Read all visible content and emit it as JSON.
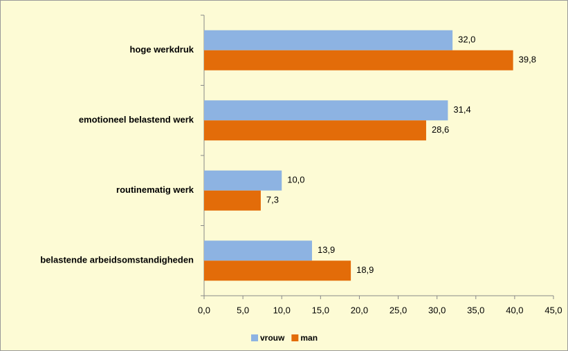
{
  "chart_data": {
    "type": "barh",
    "categories": [
      "hoge werkdruk",
      "emotioneel belastend werk",
      "routinematig werk",
      "belastende arbeidsomstandigheden"
    ],
    "series": [
      {
        "name": "vrouw",
        "color": "#8db3e2",
        "values": [
          32.0,
          31.4,
          10.0,
          13.9
        ],
        "value_labels": [
          "32,0",
          "31,4",
          "10,0",
          "13,9"
        ]
      },
      {
        "name": "man",
        "color": "#e36c09",
        "values": [
          39.8,
          28.6,
          7.3,
          18.9
        ],
        "value_labels": [
          "39,8",
          "28,6",
          "7,3",
          "18,9"
        ]
      }
    ],
    "xlim": [
      0,
      45
    ],
    "xticks": [
      {
        "value": 0,
        "label": "0,0"
      },
      {
        "value": 5,
        "label": "5,0"
      },
      {
        "value": 10,
        "label": "10,0"
      },
      {
        "value": 15,
        "label": "15,0"
      },
      {
        "value": 20,
        "label": "20,0"
      },
      {
        "value": 25,
        "label": "25,0"
      },
      {
        "value": 30,
        "label": "30,0"
      },
      {
        "value": 35,
        "label": "35,0"
      },
      {
        "value": 40,
        "label": "40,0"
      },
      {
        "value": 45,
        "label": "45,0"
      }
    ],
    "legend": "bottom"
  }
}
